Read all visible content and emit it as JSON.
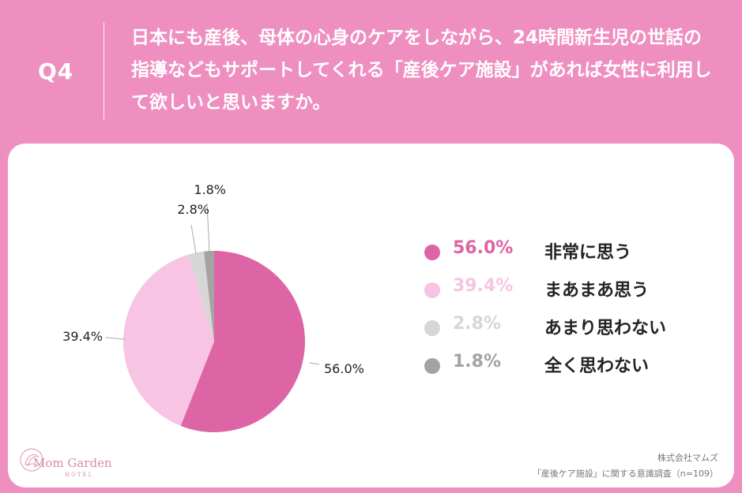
{
  "header": {
    "q_label": "Q4",
    "question": "日本にも産後、母体の心身のケアをしながら、24時間新生児の世話の指導などもサポートしてくれる「産後ケア施設」があれば女性に利用して欲しいと思いますか。"
  },
  "chart_data": {
    "type": "pie",
    "title": "",
    "slices": [
      {
        "label": "非常に思う",
        "value": 56.0,
        "pct_text": "56.0%",
        "color": "#de65a5"
      },
      {
        "label": "まあまあ思う",
        "value": 39.4,
        "pct_text": "39.4%",
        "color": "#f7c4e3"
      },
      {
        "label": "あまり思わない",
        "value": 2.8,
        "pct_text": "2.8%",
        "color": "#d6d6d6"
      },
      {
        "label": "全く思わない",
        "value": 1.8,
        "pct_text": "1.8%",
        "color": "#a3a3a3"
      }
    ],
    "legend_position": "right"
  },
  "logo": {
    "name": "Mom Garden",
    "sub": "HOTEL"
  },
  "footer": {
    "company": "株式会社マムズ",
    "survey": "「産後ケア施設」に関する意識調査（n=109）"
  }
}
